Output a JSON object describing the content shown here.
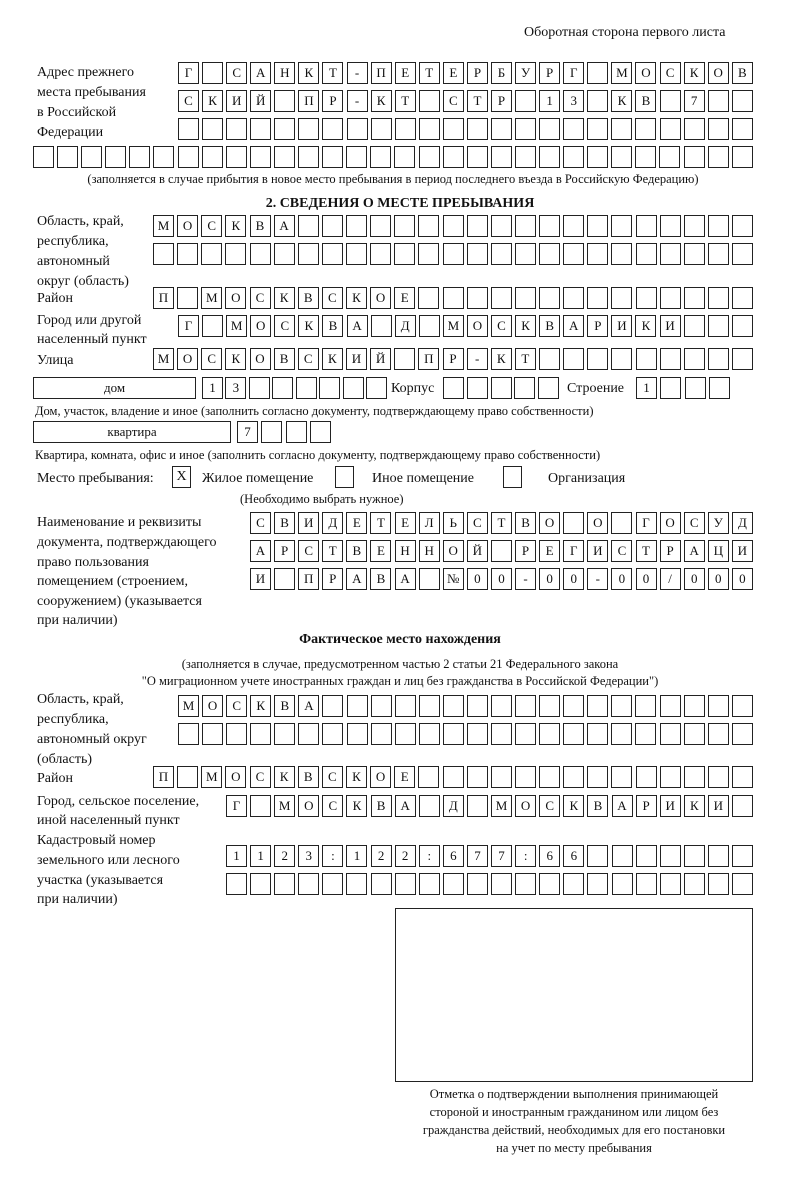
{
  "header": {
    "title": "Оборотная сторона первого листа"
  },
  "prev_address": {
    "label": [
      "Адрес прежнего",
      "места пребывания",
      "в Российской",
      "Федерации"
    ],
    "rows": [
      "Г САНКТ-ПЕТЕРБУРГ МОСКОВ",
      "СКИЙ ПР-КТ СТР 13 КВ 7  ",
      "                        ",
      "                              "
    ],
    "note": "(заполняется в случае прибытия в новое место пребывания в период последнего въезда в Российскую Федерацию)"
  },
  "section2": {
    "heading": "2. СВЕДЕНИЯ О МЕСТЕ ПРЕБЫВАНИЯ",
    "region_label": [
      "Область, край,",
      "республика,",
      "автономный",
      "округ (область)"
    ],
    "region_rows": [
      "МОСКВА                   ",
      "                         "
    ],
    "district_label": "Район",
    "district_row": "П МОСКВСКОЕ              ",
    "city_label": [
      "Город или другой",
      "населенный пункт"
    ],
    "city_row": "Г МОСКВА Д МОСКВАРИКИ   ",
    "street_label": "Улица",
    "street_row": "МОСКОВСКИЙ ПР-КТ         ",
    "house_type": "дом",
    "house_row": "13      ",
    "korpus_label": "Корпус",
    "korpus_row": "     ",
    "building_label": "Строение",
    "building_row": "1   ",
    "house_note": "Дом, участок, владение и иное (заполнить согласно документу, подтверждающему право собственности)",
    "flat_type": "квартира",
    "flat_row": "7   ",
    "flat_note": "Квартира, комната, офис и иное (заполнить согласно документу, подтверждающему право собственности)",
    "place_label": "Место пребывания:",
    "place_options": [
      {
        "label": "Жилое помещение",
        "mark": "X"
      },
      {
        "label": "Иное помещение",
        "mark": ""
      },
      {
        "label": "Организация",
        "mark": ""
      }
    ],
    "place_note": "(Необходимо выбрать нужное)",
    "doc_label": [
      "Наименование и реквизиты",
      "документа, подтверждающего",
      "право пользования",
      "помещением (строением,",
      "сооружением) (указывается",
      "при наличии)"
    ],
    "doc_rows": [
      "СВИДЕТЕЛЬСТВО О ГОСУД",
      "АРСТВЕННОЙ РЕГИСТРАЦИ",
      "И ПРАВА №00-00-00/000"
    ]
  },
  "actual": {
    "heading": "Фактическое место нахождения",
    "note": [
      "(заполняется в случае, предусмотренном частью 2 статьи 21 Федерального закона",
      "\"О миграционном учете иностранных граждан и лиц без гражданства в Российской Федерации\")"
    ],
    "region_label": [
      "Область, край,",
      "республика,",
      "автономный округ",
      "(область)"
    ],
    "region_rows": [
      "МОСКВА                  ",
      "                        "
    ],
    "district_label": "Район",
    "district_row": "П МОСКВСКОЕ              ",
    "city_label": [
      "Город, сельское поселение,",
      "иной населенный пункт"
    ],
    "city_row": "Г МОСКВА Д МОСКВАРИКИ ",
    "cadastre_label": [
      "Кадастровый номер",
      "земельного или лесного",
      "участка (указывается",
      "при наличии)"
    ],
    "cadastre_rows": [
      "1123:122:677:66       ",
      "                      "
    ]
  },
  "stamp": {
    "caption": [
      "Отметка о подтверждении выполнения принимающей",
      "стороной и иностранным гражданином или лицом без",
      "гражданства действий, необходимых для его постановки",
      "на учет по месту пребывания"
    ]
  }
}
